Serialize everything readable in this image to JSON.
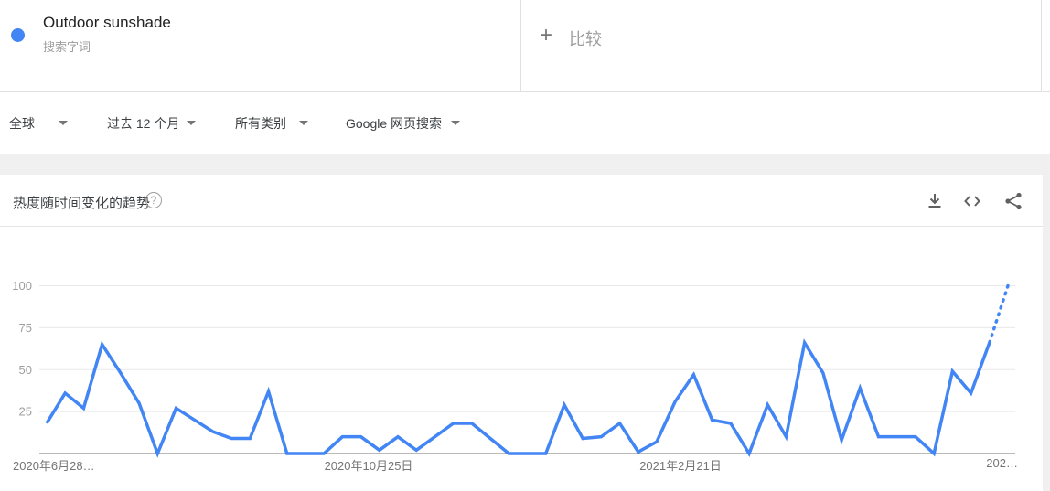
{
  "term_card": {
    "term": "Outdoor sunshade",
    "type_label": "搜索字词",
    "dot_color": "#4285f4"
  },
  "compare_card": {
    "plus": "+",
    "label": "比较"
  },
  "filters": [
    {
      "label": "全球"
    },
    {
      "label": "过去 12 个月"
    },
    {
      "label": "所有类别"
    },
    {
      "label": "Google 网页搜索"
    }
  ],
  "chart_header": {
    "title": "热度随时间变化的趋势",
    "help_glyph": "?"
  },
  "chart_data": {
    "type": "line",
    "title": "热度随时间变化的趋势",
    "series_name": "Outdoor sunshade",
    "line_color": "#4285f4",
    "ylim": [
      0,
      100
    ],
    "y_ticks": [
      25,
      50,
      75,
      100
    ],
    "x_tick_labels": [
      "2020年6月28…",
      "2020年10月25日",
      "2021年2月21日",
      "202…"
    ],
    "x_tick_point_index": [
      0,
      17,
      34,
      51
    ],
    "grid": true,
    "legend": "none",
    "dotted_tail_from_index": 51,
    "values": [
      18,
      36,
      27,
      65,
      48,
      30,
      0,
      27,
      20,
      13,
      9,
      9,
      37,
      0,
      0,
      0,
      10,
      10,
      2,
      10,
      2,
      10,
      18,
      18,
      9,
      0,
      0,
      0,
      29,
      9,
      10,
      18,
      1,
      7,
      31,
      47,
      20,
      18,
      0,
      29,
      10,
      66,
      48,
      8,
      39,
      10,
      10,
      10,
      0,
      49,
      36,
      66,
      100
    ]
  }
}
